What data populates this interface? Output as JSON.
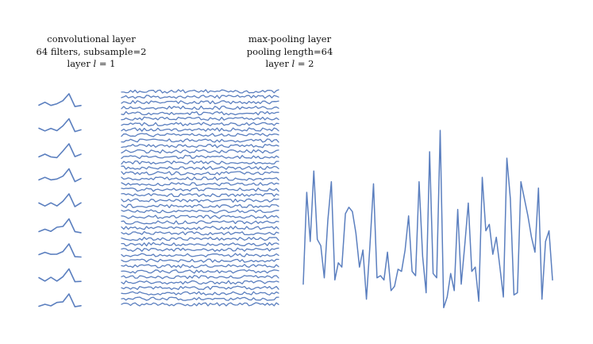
{
  "conv_layer": {
    "line1": "convolutional layer",
    "line2": "64 filters, subsample=2",
    "line3_prefix": "layer ",
    "line3_var": "l",
    "line3_suffix": " = 1"
  },
  "pool_layer": {
    "line1": "max-pooling layer",
    "line2": "pooling length=64",
    "line3_prefix": "layer ",
    "line3_var": "l",
    "line3_suffix": " = 2"
  },
  "colors": {
    "line": "#5b7fbf",
    "text": "#111111",
    "background": "#ffffff"
  },
  "filters": {
    "count_shown": 9,
    "taps": 8
  },
  "feature_maps": {
    "rows_shown": 40,
    "samples": 70
  },
  "pooled_output": {
    "values": [
      0.12,
      0.55,
      0.32,
      0.65,
      0.33,
      0.3,
      0.15,
      0.42,
      0.6,
      0.14,
      0.22,
      0.2,
      0.45,
      0.48,
      0.46,
      0.36,
      0.2,
      0.28,
      0.05,
      0.3,
      0.59,
      0.15,
      0.16,
      0.14,
      0.27,
      0.09,
      0.11,
      0.19,
      0.18,
      0.28,
      0.44,
      0.18,
      0.16,
      0.6,
      0.25,
      0.08,
      0.74,
      0.17,
      0.15,
      0.84,
      0.01,
      0.06,
      0.17,
      0.09,
      0.47,
      0.12,
      0.3,
      0.5,
      0.18,
      0.2,
      0.04,
      0.62,
      0.37,
      0.4,
      0.26,
      0.34,
      0.2,
      0.06,
      0.71,
      0.52,
      0.07,
      0.08,
      0.6,
      0.52,
      0.44,
      0.34,
      0.27,
      0.57,
      0.05,
      0.32,
      0.37,
      0.14
    ]
  }
}
